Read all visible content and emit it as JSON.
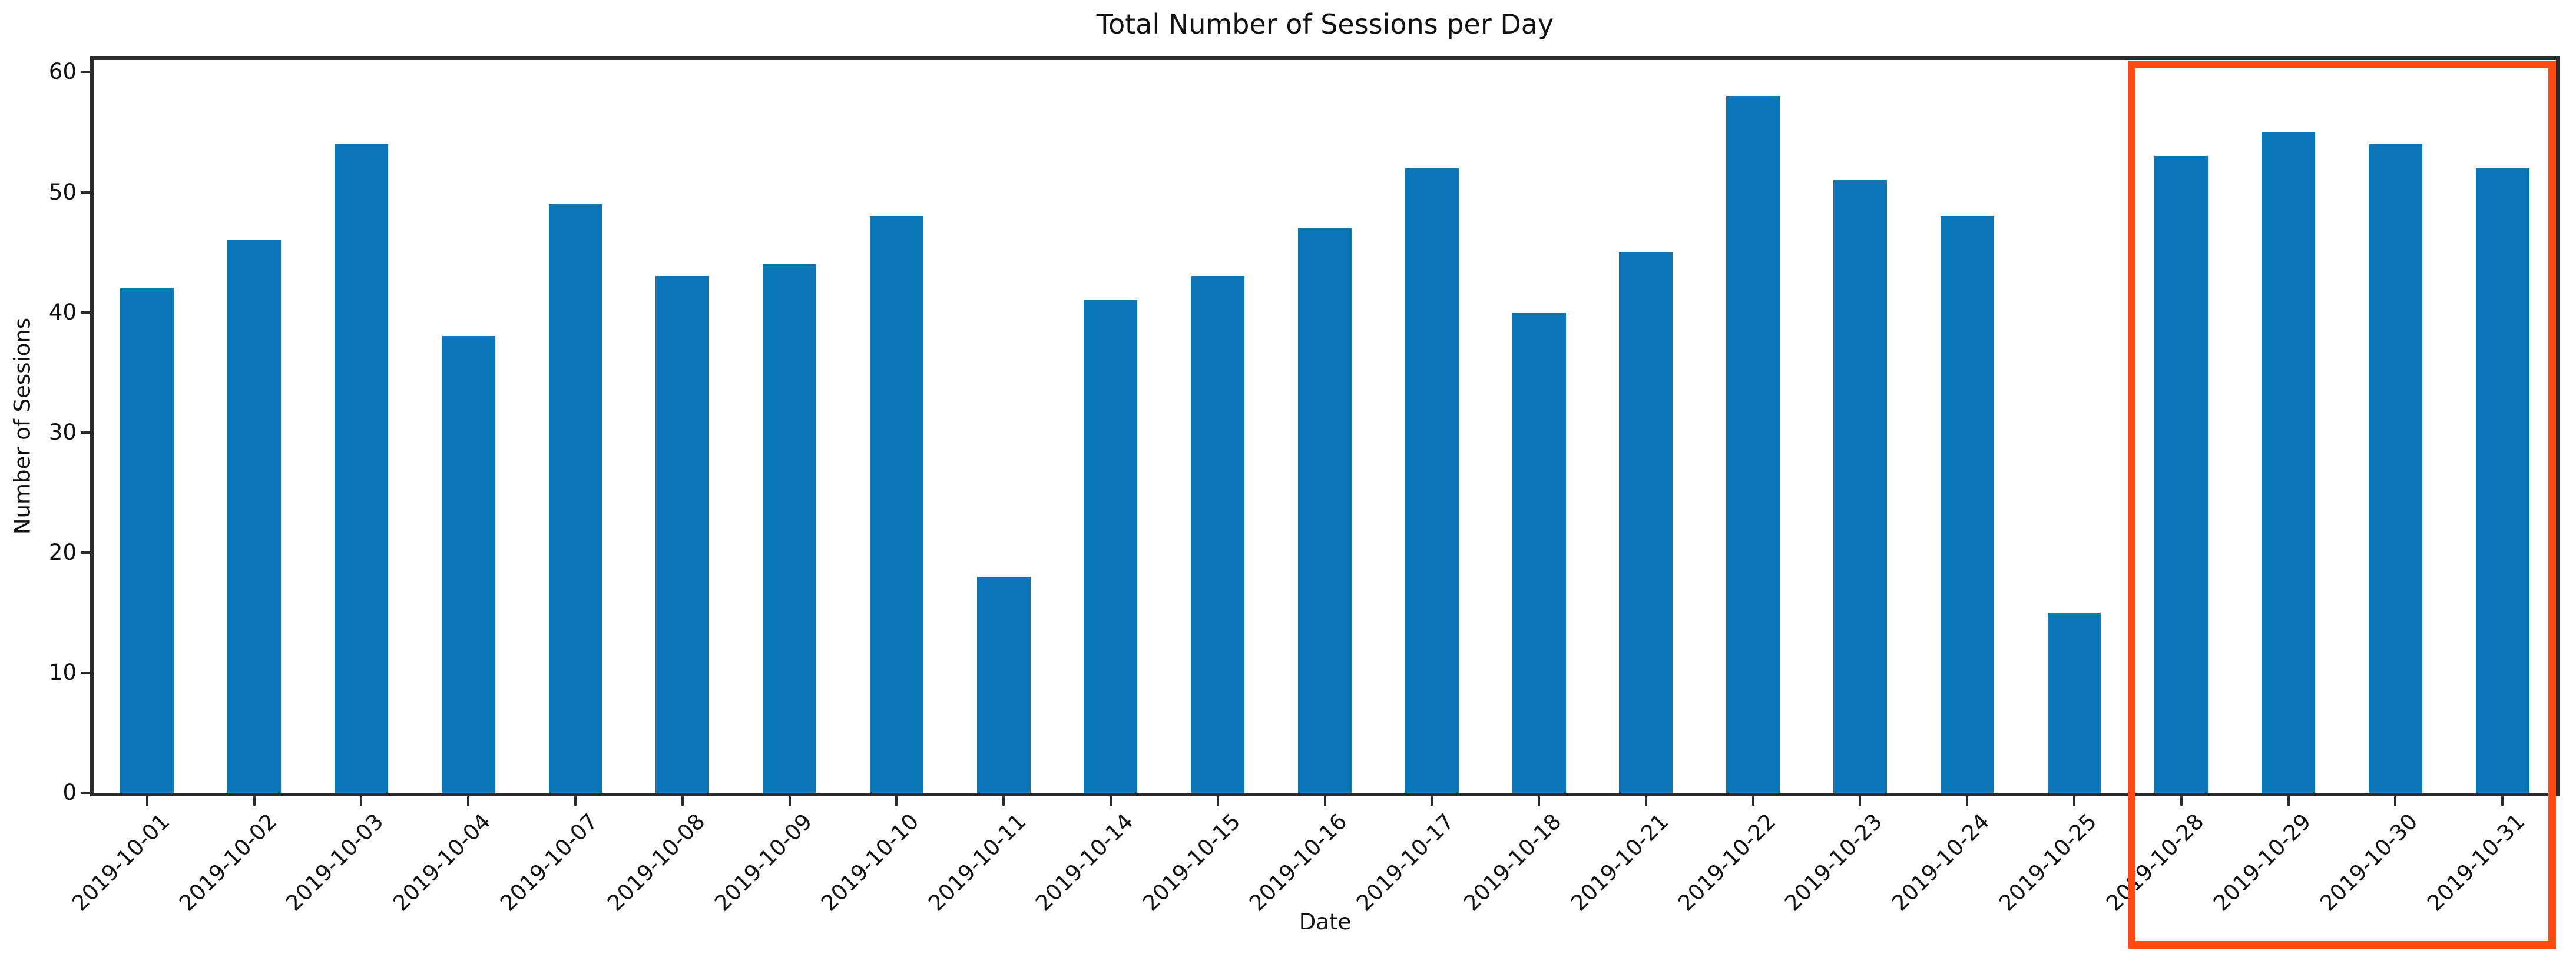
{
  "chart_data": {
    "type": "bar",
    "title": "Total Number of Sessions per Day",
    "xlabel": "Date",
    "ylabel": "Number of Sessions",
    "categories": [
      "2019-10-01",
      "2019-10-02",
      "2019-10-03",
      "2019-10-04",
      "2019-10-07",
      "2019-10-08",
      "2019-10-09",
      "2019-10-10",
      "2019-10-11",
      "2019-10-14",
      "2019-10-15",
      "2019-10-16",
      "2019-10-17",
      "2019-10-18",
      "2019-10-21",
      "2019-10-22",
      "2019-10-23",
      "2019-10-24",
      "2019-10-25",
      "2019-10-28",
      "2019-10-29",
      "2019-10-30",
      "2019-10-31"
    ],
    "values": [
      42,
      46,
      54,
      38,
      49,
      43,
      44,
      48,
      18,
      41,
      43,
      47,
      52,
      40,
      45,
      58,
      51,
      48,
      15,
      53,
      55,
      54,
      52
    ],
    "yticks": [
      0,
      10,
      20,
      30,
      40,
      50,
      60
    ],
    "ylim": [
      0,
      61
    ],
    "grid": false,
    "legend": null,
    "bar_color": "#0a76b8",
    "axis_color": "#2a2a2a",
    "text_color": "#111111",
    "highlight": {
      "categories": [
        "2019-10-28",
        "2019-10-29",
        "2019-10-30",
        "2019-10-31"
      ],
      "color": "#ff4a12"
    }
  }
}
